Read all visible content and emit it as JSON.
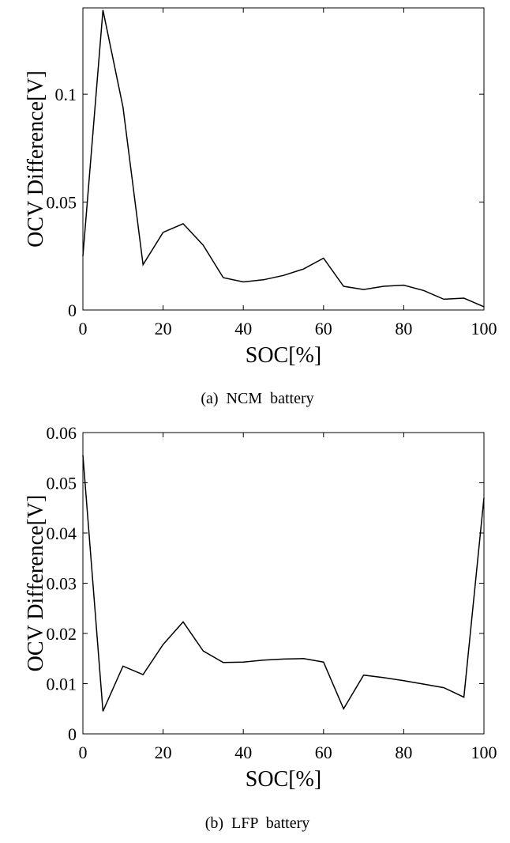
{
  "chart_data": [
    {
      "type": "line",
      "caption": "(a)  NCM  battery",
      "xlabel": "SOC[%]",
      "ylabel": "OCV Difference[V]",
      "xlim": [
        0,
        100
      ],
      "ylim": [
        0,
        0.14
      ],
      "xticks": [
        "0",
        "20",
        "40",
        "60",
        "80",
        "100"
      ],
      "yticks": [
        "0",
        "0.05",
        "0.1"
      ],
      "grid": false,
      "line_color": "#000000",
      "x": [
        0,
        5,
        10,
        15,
        20,
        25,
        30,
        35,
        40,
        45,
        50,
        55,
        60,
        65,
        70,
        75,
        80,
        85,
        90,
        95,
        100
      ],
      "values": [
        0.025,
        0.139,
        0.094,
        0.021,
        0.036,
        0.04,
        0.03,
        0.015,
        0.013,
        0.014,
        0.016,
        0.019,
        0.024,
        0.011,
        0.0095,
        0.011,
        0.0115,
        0.009,
        0.005,
        0.0055,
        0.0015
      ]
    },
    {
      "type": "line",
      "caption": "(b)  LFP  battery",
      "xlabel": "SOC[%]",
      "ylabel": "OCV Difference[V]",
      "xlim": [
        0,
        100
      ],
      "ylim": [
        0,
        0.06
      ],
      "xticks": [
        "0",
        "20",
        "40",
        "60",
        "80",
        "100"
      ],
      "yticks": [
        "0",
        "0.01",
        "0.02",
        "0.03",
        "0.04",
        "0.05",
        "0.06"
      ],
      "grid": false,
      "line_color": "#000000",
      "x": [
        0,
        5,
        10,
        15,
        20,
        25,
        30,
        35,
        40,
        45,
        50,
        55,
        60,
        65,
        70,
        75,
        80,
        85,
        90,
        95,
        100
      ],
      "values": [
        0.0555,
        0.0045,
        0.0135,
        0.0118,
        0.0178,
        0.0223,
        0.0165,
        0.0142,
        0.0143,
        0.0147,
        0.0149,
        0.015,
        0.0143,
        0.005,
        0.0117,
        0.0112,
        0.0106,
        0.0099,
        0.0092,
        0.0073,
        0.047
      ]
    }
  ]
}
